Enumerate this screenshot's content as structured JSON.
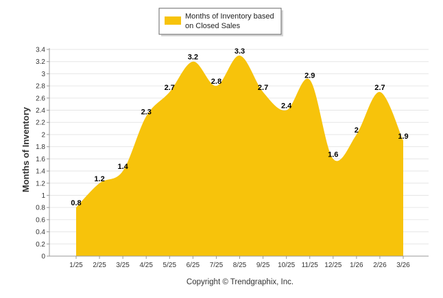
{
  "chart_data": {
    "type": "area",
    "title": "",
    "xlabel": "",
    "ylabel": "Months of Inventory",
    "ylim": [
      0,
      3.4
    ],
    "y_ticks": [
      "0",
      "0.2",
      "0.4",
      "0.6",
      "0.8",
      "1",
      "1.2",
      "1.4",
      "1.6",
      "1.8",
      "2",
      "2.2",
      "2.4",
      "2.6",
      "2.8",
      "3",
      "3.2",
      "3.4"
    ],
    "grid": true,
    "legend_position": "top-center",
    "categories": [
      "1/25",
      "2/25",
      "3/25",
      "4/25",
      "5/25",
      "6/25",
      "7/25",
      "8/25",
      "9/25",
      "10/25",
      "11/25",
      "12/25",
      "1/26",
      "2/26",
      "3/26"
    ],
    "series": [
      {
        "name": "Months of Inventory based on Closed Sales",
        "values": [
          0.8,
          1.2,
          1.4,
          2.3,
          2.7,
          3.2,
          2.8,
          3.3,
          2.7,
          2.4,
          2.9,
          1.6,
          2,
          2.7,
          1.9
        ],
        "labels": [
          "0.8",
          "1.2",
          "1.4",
          "2.3",
          "2.7",
          "3.2",
          "2.8",
          "3.3",
          "2.7",
          "2.4",
          "2.9",
          "1.6",
          "2",
          "2.7",
          "1.9"
        ],
        "color": "#F7C30B"
      }
    ]
  },
  "legend": {
    "line1": "Months of Inventory based",
    "line2": "on Closed Sales"
  },
  "footer": {
    "copyright": "Copyright © Trendgraphix, Inc."
  },
  "colors": {
    "area_fill": "#F7C30B",
    "grid": "#E6E6E6",
    "axis": "#999999"
  }
}
